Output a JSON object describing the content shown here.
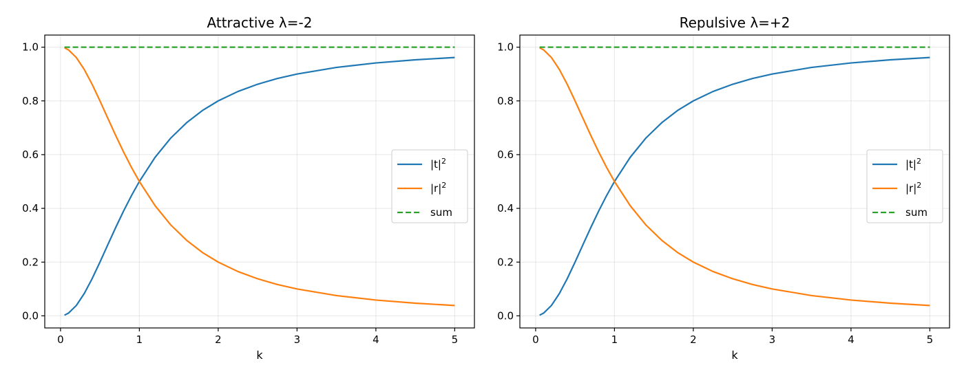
{
  "chart_data": [
    {
      "type": "line",
      "title": "Attractive  λ=-2",
      "xlabel": "k",
      "ylabel": "",
      "xlim": [
        -0.2,
        5.25
      ],
      "ylim": [
        -0.045,
        1.045
      ],
      "xticks": [
        0,
        1,
        2,
        3,
        4,
        5
      ],
      "yticks": [
        0.0,
        0.2,
        0.4,
        0.6,
        0.8,
        1.0
      ],
      "xtick_labels": [
        "0",
        "1",
        "2",
        "3",
        "4",
        "5"
      ],
      "ytick_labels": [
        "0.0",
        "0.2",
        "0.4",
        "0.6",
        "0.8",
        "1.0"
      ],
      "grid": true,
      "legend": "center-right",
      "x": [
        0.05,
        0.1,
        0.2,
        0.3,
        0.4,
        0.5,
        0.6,
        0.7,
        0.8,
        0.9,
        1.0,
        1.2,
        1.4,
        1.6,
        1.8,
        2.0,
        2.25,
        2.5,
        2.75,
        3.0,
        3.5,
        4.0,
        4.5,
        5.0
      ],
      "series": [
        {
          "name": "|t|²",
          "label_base": "|t|",
          "label_sup": "2",
          "color": "#1f77b4",
          "dash": "solid",
          "values": [
            0.0025,
            0.0099,
            0.0385,
            0.0826,
            0.1379,
            0.2,
            0.2647,
            0.3289,
            0.3902,
            0.4475,
            0.5,
            0.5902,
            0.6622,
            0.719,
            0.7642,
            0.8,
            0.835,
            0.862,
            0.8832,
            0.9,
            0.9245,
            0.9412,
            0.9529,
            0.9615
          ]
        },
        {
          "name": "|r|²",
          "label_base": "|r|",
          "label_sup": "2",
          "color": "#ff7f0e",
          "dash": "solid",
          "values": [
            0.9975,
            0.9901,
            0.9615,
            0.9174,
            0.8621,
            0.8,
            0.7353,
            0.6711,
            0.6098,
            0.5525,
            0.5,
            0.4098,
            0.3378,
            0.281,
            0.2358,
            0.2,
            0.165,
            0.138,
            0.1168,
            0.1,
            0.0755,
            0.0588,
            0.0471,
            0.0385
          ]
        },
        {
          "name": "sum",
          "label_base": "sum",
          "label_sup": "",
          "color": "#2ca02c",
          "dash": "dashed",
          "values": [
            1,
            1,
            1,
            1,
            1,
            1,
            1,
            1,
            1,
            1,
            1,
            1,
            1,
            1,
            1,
            1,
            1,
            1,
            1,
            1,
            1,
            1,
            1,
            1
          ]
        }
      ]
    },
    {
      "type": "line",
      "title": "Repulsive  λ=+2",
      "xlabel": "k",
      "ylabel": "",
      "xlim": [
        -0.2,
        5.25
      ],
      "ylim": [
        -0.045,
        1.045
      ],
      "xticks": [
        0,
        1,
        2,
        3,
        4,
        5
      ],
      "yticks": [
        0.0,
        0.2,
        0.4,
        0.6,
        0.8,
        1.0
      ],
      "xtick_labels": [
        "0",
        "1",
        "2",
        "3",
        "4",
        "5"
      ],
      "ytick_labels": [
        "0.0",
        "0.2",
        "0.4",
        "0.6",
        "0.8",
        "1.0"
      ],
      "grid": true,
      "legend": "center-right",
      "x": [
        0.05,
        0.1,
        0.2,
        0.3,
        0.4,
        0.5,
        0.6,
        0.7,
        0.8,
        0.9,
        1.0,
        1.2,
        1.4,
        1.6,
        1.8,
        2.0,
        2.25,
        2.5,
        2.75,
        3.0,
        3.5,
        4.0,
        4.5,
        5.0
      ],
      "series": [
        {
          "name": "|t|²",
          "label_base": "|t|",
          "label_sup": "2",
          "color": "#1f77b4",
          "dash": "solid",
          "values": [
            0.0025,
            0.0099,
            0.0385,
            0.0826,
            0.1379,
            0.2,
            0.2647,
            0.3289,
            0.3902,
            0.4475,
            0.5,
            0.5902,
            0.6622,
            0.719,
            0.7642,
            0.8,
            0.835,
            0.862,
            0.8832,
            0.9,
            0.9245,
            0.9412,
            0.9529,
            0.9615
          ]
        },
        {
          "name": "|r|²",
          "label_base": "|r|",
          "label_sup": "2",
          "color": "#ff7f0e",
          "dash": "solid",
          "values": [
            0.9975,
            0.9901,
            0.9615,
            0.9174,
            0.8621,
            0.8,
            0.7353,
            0.6711,
            0.6098,
            0.5525,
            0.5,
            0.4098,
            0.3378,
            0.281,
            0.2358,
            0.2,
            0.165,
            0.138,
            0.1168,
            0.1,
            0.0755,
            0.0588,
            0.0471,
            0.0385
          ]
        },
        {
          "name": "sum",
          "label_base": "sum",
          "label_sup": "",
          "color": "#2ca02c",
          "dash": "dashed",
          "values": [
            1,
            1,
            1,
            1,
            1,
            1,
            1,
            1,
            1,
            1,
            1,
            1,
            1,
            1,
            1,
            1,
            1,
            1,
            1,
            1,
            1,
            1,
            1,
            1
          ]
        }
      ]
    }
  ]
}
